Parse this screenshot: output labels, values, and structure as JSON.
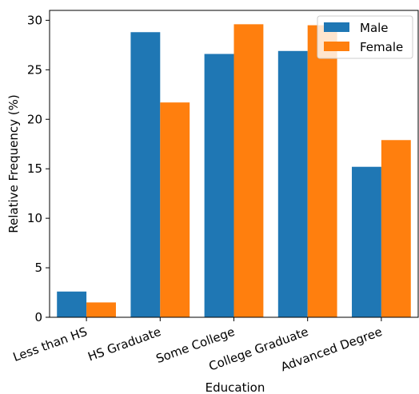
{
  "chart_data": {
    "type": "bar",
    "xlabel": "Education",
    "ylabel": "Relative Frequency (%)",
    "categories": [
      "Less than HS",
      "HS Graduate",
      "Some College",
      "College Graduate",
      "Advanced Degree"
    ],
    "series": [
      {
        "name": "Male",
        "color": "#1f77b4",
        "values": [
          2.6,
          28.8,
          26.6,
          26.9,
          15.2
        ]
      },
      {
        "name": "Female",
        "color": "#ff7f0e",
        "values": [
          1.5,
          21.7,
          29.6,
          29.5,
          17.9
        ]
      }
    ],
    "ylim": [
      0,
      31
    ],
    "yticks": [
      0,
      5,
      10,
      15,
      20,
      25,
      30
    ],
    "legend_position": "top-right",
    "grid": false
  }
}
